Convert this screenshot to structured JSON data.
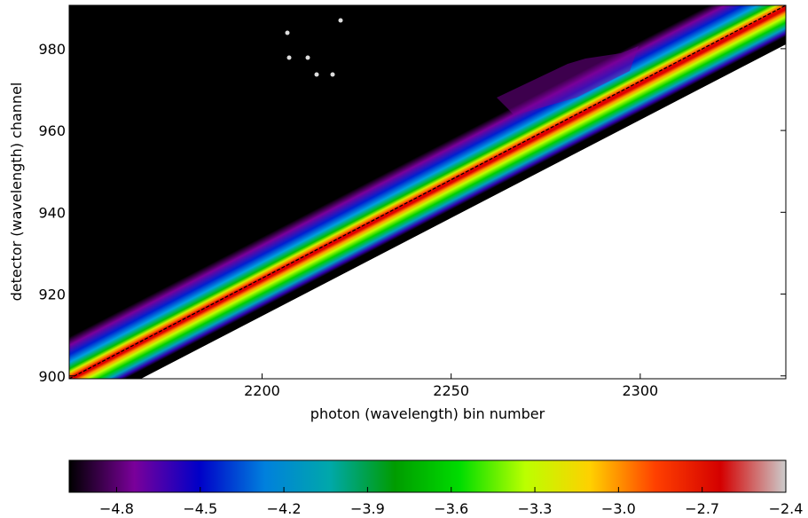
{
  "chart_data": {
    "type": "image",
    "xlabel": "photon (wavelength) bin number",
    "ylabel": "detector (wavelength) channel",
    "xlim": [
      2149,
      2338.5
    ],
    "ylim": [
      899.3,
      990.6
    ],
    "xticks": [
      2200,
      2250,
      2300
    ],
    "yticks": [
      900,
      920,
      940,
      960,
      980
    ],
    "fit": {
      "x": [
        2149,
        2338.5
      ],
      "y": [
        899.3,
        990.6
      ],
      "color": "#000000",
      "dashed": true
    },
    "colorbar": {
      "lim": [
        -4.97,
        -2.4
      ],
      "ticks": [
        {
          "value": -4.8,
          "label": "−4.8"
        },
        {
          "value": -4.5,
          "label": "−4.5"
        },
        {
          "value": -4.2,
          "label": "−4.2"
        },
        {
          "value": -3.9,
          "label": "−3.9"
        },
        {
          "value": -3.6,
          "label": "−3.6"
        },
        {
          "value": -3.3,
          "label": "−3.3"
        },
        {
          "value": -3.0,
          "label": "−3.0"
        },
        {
          "value": -2.7,
          "label": "−2.7"
        },
        {
          "value": -2.4,
          "label": "−2.4"
        }
      ],
      "colors": [
        "#000000",
        "#7a009a",
        "#0000c8",
        "#0080dd",
        "#00a8aa",
        "#009c00",
        "#00dd00",
        "#bbff00",
        "#ffd000",
        "#ff4000",
        "#d40000",
        "#cccccc"
      ]
    }
  }
}
